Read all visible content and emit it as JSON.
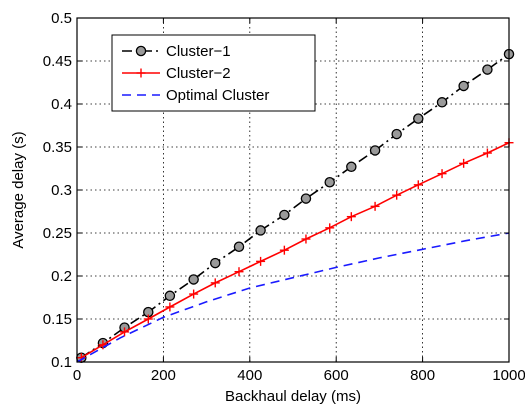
{
  "chart_data": {
    "type": "line",
    "title": "",
    "xlabel": "Backhaul delay (ms)",
    "ylabel": "Average delay (s)",
    "xlim": [
      0,
      1000
    ],
    "ylim": [
      0.1,
      0.5
    ],
    "xticks": [
      0,
      200,
      400,
      600,
      800,
      1000
    ],
    "xtick_labels": [
      "0",
      "200",
      "400",
      "600",
      "800",
      "1000"
    ],
    "yticks": [
      0.1,
      0.15,
      0.2,
      0.25,
      0.3,
      0.35,
      0.4,
      0.45,
      0.5
    ],
    "ytick_labels": [
      "0.1",
      "0.15",
      "0.2",
      "0.25",
      "0.3",
      "0.35",
      "0.4",
      "0.45",
      "0.5"
    ],
    "grid": true,
    "legend_position": "top-left",
    "series": [
      {
        "name": "Cluster−1",
        "color": "#000000",
        "line_style": "dash-dot",
        "marker": "circle",
        "x": [
          10,
          60,
          110,
          165,
          215,
          270,
          320,
          375,
          425,
          480,
          530,
          585,
          635,
          690,
          740,
          790,
          845,
          895,
          950,
          1000
        ],
        "y": [
          0.105,
          0.122,
          0.14,
          0.158,
          0.177,
          0.196,
          0.215,
          0.234,
          0.253,
          0.271,
          0.29,
          0.309,
          0.327,
          0.346,
          0.365,
          0.383,
          0.402,
          0.421,
          0.44,
          0.458
        ]
      },
      {
        "name": "Cluster−2",
        "color": "#ff0000",
        "line_style": "solid",
        "marker": "plus",
        "x": [
          10,
          60,
          110,
          165,
          215,
          270,
          320,
          375,
          425,
          480,
          530,
          585,
          635,
          690,
          740,
          790,
          845,
          895,
          950,
          1000
        ],
        "y": [
          0.105,
          0.12,
          0.135,
          0.15,
          0.164,
          0.179,
          0.192,
          0.205,
          0.217,
          0.23,
          0.243,
          0.256,
          0.269,
          0.281,
          0.294,
          0.306,
          0.319,
          0.331,
          0.343,
          0.355
        ]
      },
      {
        "name": "Optimal Cluster",
        "color": "#1a1aff",
        "line_style": "dashed",
        "marker": "none",
        "x": [
          0,
          100,
          200,
          300,
          400,
          500,
          600,
          700,
          800,
          900,
          1000
        ],
        "y": [
          0.1,
          0.128,
          0.152,
          0.17,
          0.186,
          0.198,
          0.21,
          0.221,
          0.231,
          0.241,
          0.25
        ]
      }
    ]
  }
}
